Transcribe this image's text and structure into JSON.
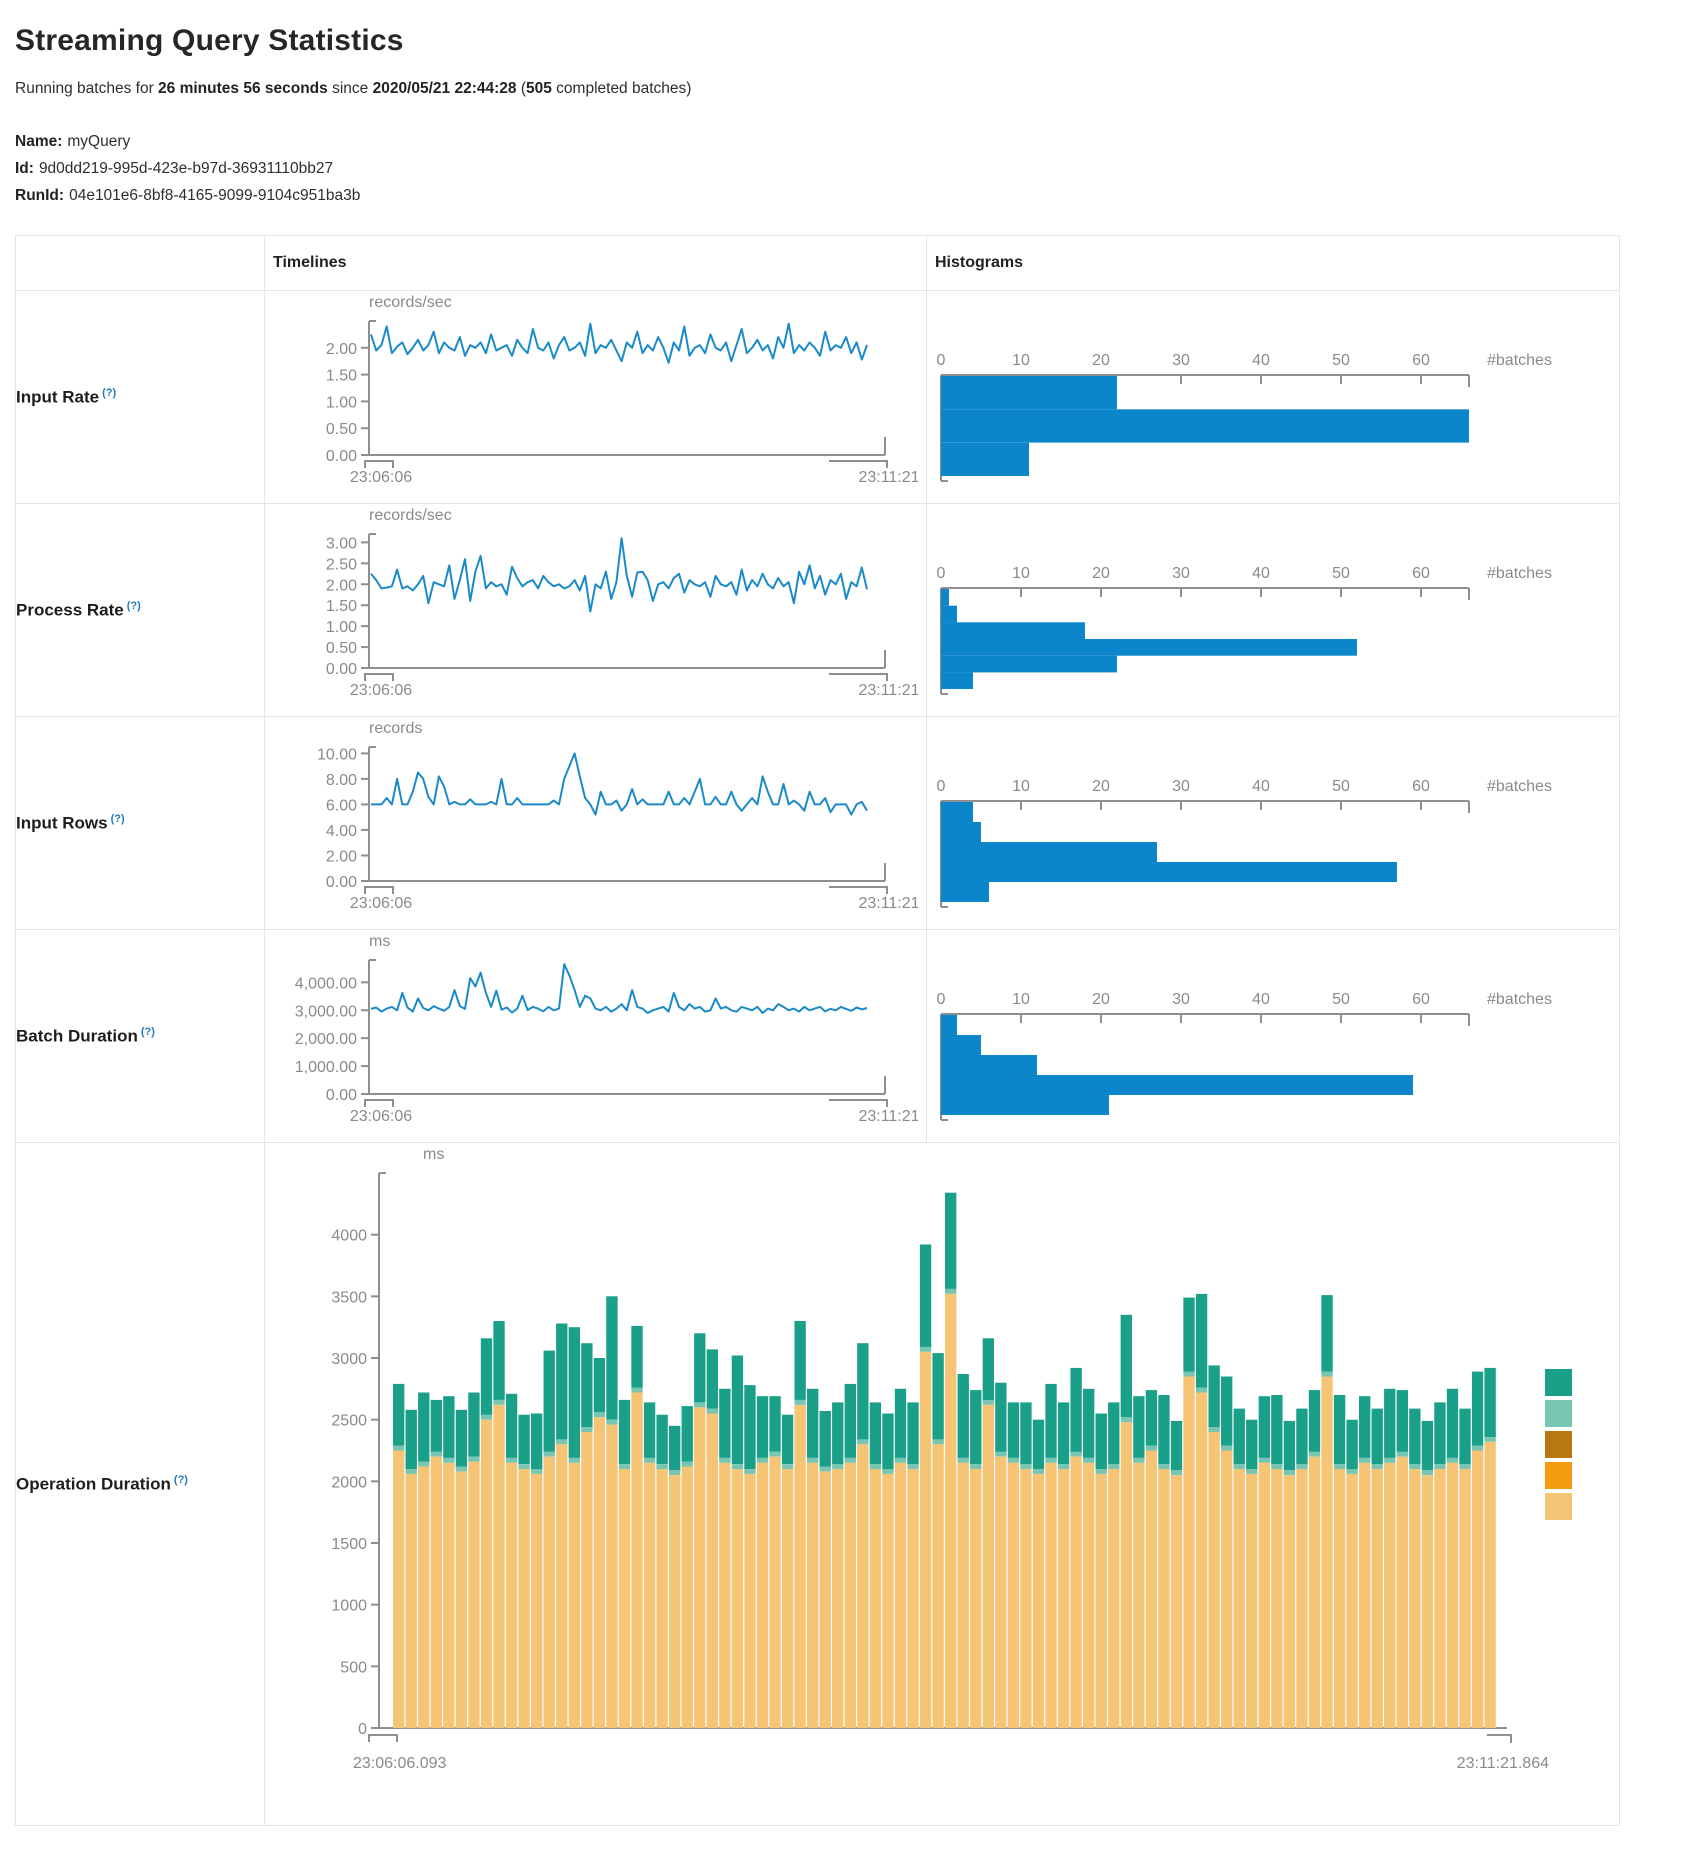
{
  "header": {
    "title": "Streaming Query Statistics",
    "running_prefix": "Running batches for ",
    "duration": "26 minutes 56 seconds",
    "since_label": " since ",
    "start_time": "2020/05/21 22:44:28",
    "paren_open": " (",
    "batches_count": "505",
    "paren_close": " completed batches)"
  },
  "meta": {
    "name_label": "Name:",
    "name_value": "myQuery",
    "id_label": "Id:",
    "id_value": "9d0dd219-995d-423e-b97d-36931110bb27",
    "runid_label": "RunId:",
    "runid_value": "04e101e6-8bf8-4165-9099-9104c951ba3b"
  },
  "table": {
    "timelines_header": "Timelines",
    "histograms_header": "Histograms"
  },
  "rows": [
    {
      "label": "Input Rate",
      "help": "(?)"
    },
    {
      "label": "Process Rate",
      "help": "(?)"
    },
    {
      "label": "Input Rows",
      "help": "(?)"
    },
    {
      "label": "Batch Duration",
      "help": "(?)"
    },
    {
      "label": "Operation Duration",
      "help": "(?)"
    }
  ],
  "colors": {
    "line": "#1b8ac9",
    "hist_bar": "#0b86ca",
    "axis": "#8f8f8f",
    "tick_text": "#8a8a8a",
    "help": "#1e7bb8",
    "teal": "#1aa088",
    "light_teal": "#78c6b2",
    "ochre": "#b8780f",
    "orange": "#f39c12",
    "tan": "#f6c475"
  },
  "chart_data": [
    {
      "name": "input_rate",
      "timeline": {
        "type": "line",
        "unit": "records/sec",
        "x_start": "23:06:06",
        "x_end": "23:11:21",
        "ymax": 2.5,
        "y_ticks": [
          {
            "v": 0,
            "label": "0.00"
          },
          {
            "v": 0.5,
            "label": "0.50"
          },
          {
            "v": 1,
            "label": "1.00"
          },
          {
            "v": 1.5,
            "label": "1.50"
          },
          {
            "v": 2,
            "label": "2.00"
          }
        ],
        "values": [
          2.25,
          1.95,
          2.05,
          2.4,
          1.9,
          2.02,
          2.1,
          1.88,
          2.0,
          2.15,
          1.95,
          2.05,
          2.3,
          1.9,
          2.1,
          2.0,
          1.95,
          2.2,
          1.85,
          2.05,
          2.0,
          2.1,
          1.9,
          2.25,
          1.95,
          2.0,
          2.05,
          1.85,
          2.15,
          2.0,
          1.9,
          2.35,
          2.0,
          1.95,
          2.1,
          1.8,
          2.05,
          2.2,
          1.95,
          2.0,
          2.1,
          1.85,
          2.45,
          1.9,
          2.05,
          2.0,
          2.15,
          1.95,
          1.75,
          2.1,
          2.0,
          2.3,
          1.9,
          2.05,
          1.95,
          2.2,
          2.0,
          1.72,
          2.1,
          1.95,
          2.4,
          1.85,
          2.0,
          2.05,
          1.9,
          2.25,
          2.0,
          1.95,
          2.1,
          1.75,
          2.05,
          2.35,
          1.9,
          2.0,
          2.15,
          1.95,
          2.05,
          1.8,
          2.2,
          2.0,
          2.45,
          1.9,
          2.05,
          1.95,
          2.1,
          2.0,
          1.85,
          2.3,
          1.95,
          2.05,
          2.0,
          2.2,
          1.9,
          2.1,
          1.78,
          2.05
        ]
      },
      "histogram": {
        "type": "bar",
        "orientation": "horizontal",
        "axis_label": "#batches",
        "xmax": 66,
        "x_ticks": [
          0,
          10,
          20,
          30,
          40,
          50,
          60
        ],
        "counts": [
          22,
          66,
          11
        ]
      }
    },
    {
      "name": "process_rate",
      "timeline": {
        "type": "line",
        "unit": "records/sec",
        "x_start": "23:06:06",
        "x_end": "23:11:21",
        "ymax": 3.2,
        "y_ticks": [
          {
            "v": 0,
            "label": "0.00"
          },
          {
            "v": 0.5,
            "label": "0.50"
          },
          {
            "v": 1,
            "label": "1.00"
          },
          {
            "v": 1.5,
            "label": "1.50"
          },
          {
            "v": 2,
            "label": "2.00"
          },
          {
            "v": 2.5,
            "label": "2.50"
          },
          {
            "v": 3,
            "label": "3.00"
          }
        ],
        "values": [
          2.25,
          2.1,
          1.9,
          1.92,
          1.95,
          2.35,
          1.9,
          1.95,
          1.85,
          2.0,
          2.2,
          1.55,
          2.05,
          2.0,
          1.95,
          2.45,
          1.65,
          2.1,
          2.6,
          1.6,
          2.3,
          2.68,
          1.9,
          2.05,
          1.95,
          2.0,
          1.75,
          2.42,
          2.15,
          1.95,
          2.05,
          2.1,
          1.9,
          2.2,
          2.05,
          1.95,
          2.0,
          1.9,
          1.95,
          2.1,
          1.85,
          2.2,
          1.35,
          2.0,
          1.9,
          2.3,
          1.65,
          2.05,
          3.1,
          2.2,
          1.7,
          2.28,
          2.3,
          2.1,
          1.6,
          2.0,
          2.05,
          1.9,
          2.15,
          2.25,
          1.8,
          2.1,
          2.0,
          1.95,
          2.05,
          1.7,
          2.2,
          2.0,
          1.95,
          2.05,
          1.75,
          2.35,
          1.85,
          2.1,
          1.95,
          2.25,
          2.0,
          1.9,
          2.15,
          1.95,
          2.05,
          1.55,
          2.3,
          2.0,
          2.45,
          1.9,
          2.2,
          1.75,
          2.1,
          2.0,
          2.25,
          1.65,
          2.05,
          1.95,
          2.4,
          1.88
        ]
      },
      "histogram": {
        "type": "bar",
        "orientation": "horizontal",
        "axis_label": "#batches",
        "xmax": 66,
        "x_ticks": [
          0,
          10,
          20,
          30,
          40,
          50,
          60
        ],
        "counts": [
          1,
          2,
          18,
          52,
          22,
          4
        ]
      }
    },
    {
      "name": "input_rows",
      "timeline": {
        "type": "line",
        "unit": "records",
        "x_start": "23:06:06",
        "x_end": "23:11:21",
        "ymax": 10.5,
        "y_ticks": [
          {
            "v": 0,
            "label": "0.00"
          },
          {
            "v": 2,
            "label": "2.00"
          },
          {
            "v": 4,
            "label": "4.00"
          },
          {
            "v": 6,
            "label": "6.00"
          },
          {
            "v": 8,
            "label": "8.00"
          },
          {
            "v": 10,
            "label": "10.00"
          }
        ],
        "values": [
          6,
          6,
          6,
          6.5,
          6,
          8,
          6,
          6,
          7,
          8.5,
          8,
          6.6,
          6,
          8.2,
          7.4,
          6,
          6.2,
          6,
          6,
          6.4,
          6,
          6,
          6,
          6.2,
          6,
          8,
          6,
          6,
          6.5,
          6,
          6,
          6,
          6,
          6,
          6,
          6.3,
          6,
          8,
          9,
          10,
          8.2,
          6.5,
          6,
          5.2,
          7,
          6,
          6,
          6.3,
          5.5,
          6,
          7.2,
          6,
          6.4,
          6,
          6,
          6,
          6,
          7,
          6,
          6,
          6.5,
          6,
          7,
          8,
          6,
          6,
          6.6,
          6,
          6,
          7,
          6,
          5.5,
          6,
          6.5,
          6,
          8.2,
          7,
          6,
          6,
          7.6,
          6,
          6.3,
          6,
          5.5,
          7,
          6,
          6,
          6.5,
          5.4,
          6,
          6,
          6,
          5.2,
          6,
          6.2,
          5.5
        ]
      },
      "histogram": {
        "type": "bar",
        "orientation": "horizontal",
        "axis_label": "#batches",
        "xmax": 66,
        "x_ticks": [
          0,
          10,
          20,
          30,
          40,
          50,
          60
        ],
        "counts": [
          4,
          5,
          27,
          57,
          6
        ]
      }
    },
    {
      "name": "batch_duration",
      "timeline": {
        "type": "line",
        "unit": "ms",
        "x_start": "23:06:06",
        "x_end": "23:11:21",
        "ymax": 4800,
        "y_ticks": [
          {
            "v": 0,
            "label": "0.00"
          },
          {
            "v": 1000,
            "label": "1,000.00"
          },
          {
            "v": 2000,
            "label": "2,000.00"
          },
          {
            "v": 3000,
            "label": "3,000.00"
          },
          {
            "v": 4000,
            "label": "4,000.00"
          }
        ],
        "values": [
          3050,
          3100,
          2950,
          3060,
          3120,
          3000,
          3620,
          3100,
          2950,
          3420,
          3080,
          3000,
          3150,
          3060,
          2980,
          3120,
          3720,
          3150,
          3050,
          4150,
          3850,
          4350,
          3620,
          3120,
          3700,
          3020,
          3100,
          2920,
          3060,
          3520,
          3010,
          3120,
          3060,
          2960,
          3120,
          3000,
          3060,
          4650,
          4250,
          3720,
          3120,
          3520,
          3420,
          3060,
          3000,
          3120,
          2950,
          3060,
          3220,
          3000,
          3720,
          3120,
          3060,
          2900,
          3000,
          3060,
          3120,
          2950,
          3620,
          3120,
          3000,
          3220,
          3060,
          3120,
          2950,
          3000,
          3420,
          3060,
          3120,
          3000,
          2950,
          3120,
          3060,
          3000,
          3120,
          2900,
          3060,
          3000,
          3220,
          3120,
          3000,
          3060,
          2950,
          3120,
          3000,
          3060,
          3120,
          2960,
          3050,
          3000,
          3120,
          3050,
          2980,
          3100,
          3030,
          3080
        ]
      },
      "histogram": {
        "type": "bar",
        "orientation": "horizontal",
        "axis_label": "#batches",
        "xmax": 66,
        "x_ticks": [
          0,
          10,
          20,
          30,
          40,
          50,
          60
        ],
        "counts": [
          2,
          5,
          12,
          59,
          21
        ]
      }
    },
    {
      "name": "operation_duration",
      "timeline": {
        "type": "stacked-bar",
        "unit": "ms",
        "x_start": "23:06:06.093",
        "x_end": "23:11:21.864",
        "ymax": 4500,
        "y_ticks": [
          {
            "v": 0,
            "label": "0"
          },
          {
            "v": 500,
            "label": "500"
          },
          {
            "v": 1000,
            "label": "1000"
          },
          {
            "v": 1500,
            "label": "1500"
          },
          {
            "v": 2000,
            "label": "2000"
          },
          {
            "v": 2500,
            "label": "2500"
          },
          {
            "v": 3000,
            "label": "3000"
          },
          {
            "v": 3500,
            "label": "3500"
          },
          {
            "v": 4000,
            "label": "4000"
          }
        ],
        "series": [
          {
            "name": "tan-segment",
            "color": "#f6c475",
            "values": [
              2250,
              2060,
              2120,
              2200,
              2150,
              2080,
              2160,
              2500,
              2620,
              2150,
              2100,
              2060,
              2200,
              2300,
              2150,
              2400,
              2520,
              2460,
              2100,
              2720,
              2150,
              2100,
              2050,
              2120,
              2600,
              2550,
              2150,
              2100,
              2060,
              2150,
              2200,
              2100,
              2620,
              2150,
              2080,
              2100,
              2150,
              2300,
              2100,
              2060,
              2150,
              2100,
              3050,
              2300,
              3520,
              2150,
              2100,
              2620,
              2200,
              2150,
              2100,
              2060,
              2150,
              2100,
              2200,
              2150,
              2060,
              2100,
              2480,
              2150,
              2250,
              2100,
              2050,
              2850,
              2720,
              2400,
              2250,
              2100,
              2060,
              2150,
              2100,
              2050,
              2100,
              2200,
              2850,
              2100,
              2060,
              2150,
              2100,
              2150,
              2200,
              2100,
              2050,
              2100,
              2150,
              2100,
              2250,
              2320
            ]
          },
          {
            "name": "light-teal-segment",
            "color": "#78c6b2",
            "uniform_value": 40
          },
          {
            "name": "teal-segment",
            "color": "#1aa088",
            "values": [
              500,
              480,
              560,
              420,
              500,
              460,
              520,
              620,
              640,
              520,
              400,
              450,
              820,
              940,
              1060,
              680,
              440,
              1000,
              520,
              500,
              450,
              400,
              360,
              450,
              560,
              480,
              560,
              880,
              680,
              500,
              450,
              400,
              640,
              560,
              450,
              500,
              600,
              780,
              500,
              450,
              560,
              500,
              830,
              700,
              780,
              680,
              600,
              500,
              560,
              450,
              500,
              400,
              600,
              500,
              680,
              560,
              450,
              500,
              830,
              500,
              450,
              560,
              400,
              600,
              760,
              500,
              560,
              450,
              400,
              500,
              560,
              400,
              450,
              500,
              620,
              560,
              400,
              500,
              450,
              560,
              500,
              450,
              400,
              500,
              560,
              450,
              600,
              560
            ]
          }
        ],
        "legend_colors": [
          "#1aa088",
          "#78c6b2",
          "#b8780f",
          "#f39c12",
          "#f6c475"
        ]
      }
    }
  ]
}
